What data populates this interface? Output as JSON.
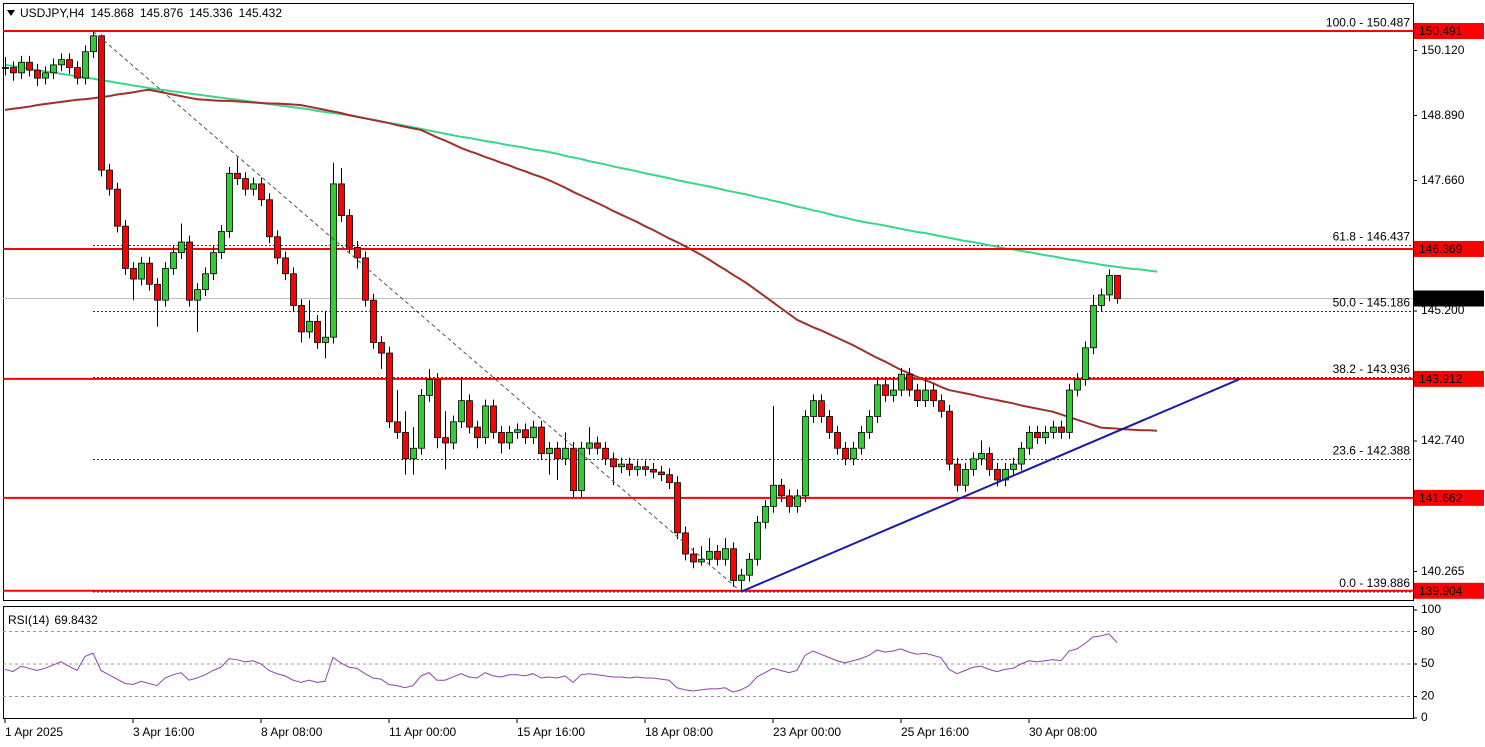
{
  "chart_data": {
    "type": "candlestick",
    "symbol": "USDJPY,H4",
    "categories": [
      "1 Apr 2025",
      null,
      null,
      null,
      null,
      null,
      null,
      null,
      null,
      null,
      null,
      null,
      null,
      null,
      null,
      null,
      "3 Apr 16:00",
      null,
      null,
      null,
      null,
      null,
      null,
      null,
      null,
      null,
      null,
      null,
      null,
      null,
      null,
      null,
      "8 Apr 08:00",
      null,
      null,
      null,
      null,
      null,
      null,
      null,
      null,
      null,
      null,
      null,
      null,
      null,
      null,
      null,
      "11 Apr 00:00",
      null,
      null,
      null,
      null,
      null,
      null,
      null,
      null,
      null,
      null,
      null,
      null,
      null,
      null,
      null,
      "15 Apr 16:00",
      null,
      null,
      null,
      null,
      null,
      null,
      null,
      null,
      null,
      null,
      null,
      null,
      null,
      null,
      null,
      "18 Apr 08:00",
      null,
      null,
      null,
      null,
      null,
      null,
      null,
      null,
      null,
      null,
      null,
      null,
      null,
      null,
      null,
      "23 Apr 00:00",
      null,
      null,
      null,
      null,
      null,
      null,
      null,
      null,
      null,
      null,
      null,
      null,
      null,
      null,
      null,
      "25 Apr 16:00",
      null,
      null,
      null,
      null,
      null,
      null,
      null,
      null,
      null,
      null,
      null,
      null,
      null,
      null,
      null,
      "30 Apr 08:00",
      null,
      null,
      null,
      null,
      null,
      null,
      null,
      null,
      null,
      null,
      null,
      null,
      null,
      null,
      null,
      null
    ],
    "open": [
      149.8,
      149.8,
      149.7,
      149.9,
      149.75,
      149.6,
      149.7,
      149.85,
      149.95,
      149.8,
      149.6,
      150.1,
      150.4,
      147.86,
      147.5,
      146.8,
      146.0,
      145.8,
      146.1,
      145.7,
      145.4,
      146.0,
      146.3,
      146.5,
      145.4,
      145.6,
      145.9,
      146.3,
      146.7,
      147.8,
      147.7,
      147.5,
      147.6,
      147.3,
      146.6,
      146.2,
      145.9,
      145.3,
      144.8,
      145.0,
      144.6,
      144.7,
      147.6,
      147.0,
      146.4,
      146.2,
      145.4,
      144.6,
      144.4,
      143.1,
      142.9,
      142.4,
      142.6,
      143.6,
      143.9,
      142.8,
      142.7,
      143.1,
      143.5,
      143.0,
      142.8,
      143.4,
      142.9,
      142.7,
      142.9,
      142.95,
      142.8,
      143.0,
      142.5,
      142.6,
      142.4,
      142.6,
      141.8,
      142.6,
      142.7,
      142.6,
      142.4,
      142.25,
      142.3,
      142.2,
      142.25,
      142.2,
      142.15,
      142.1,
      141.95,
      141.0,
      140.6,
      140.45,
      140.5,
      140.65,
      140.5,
      140.7,
      140.1,
      140.2,
      140.5,
      141.2,
      141.5,
      141.9,
      141.7,
      141.5,
      141.7,
      143.2,
      143.5,
      143.2,
      142.9,
      142.6,
      142.4,
      142.6,
      142.9,
      143.2,
      143.8,
      143.6,
      143.7,
      144.0,
      143.7,
      143.5,
      143.7,
      143.5,
      143.3,
      142.3,
      141.9,
      142.2,
      142.4,
      142.5,
      142.2,
      142.0,
      142.2,
      142.3,
      142.6,
      142.9,
      142.8,
      142.9,
      143.0,
      142.9,
      143.7,
      143.9,
      144.5,
      145.3,
      145.5,
      145.868,
      null,
      null,
      null,
      null,
      null
    ],
    "high": [
      150.0,
      149.92,
      150.02,
      150.02,
      149.87,
      149.82,
      149.97,
      150.07,
      150.07,
      149.92,
      150.22,
      150.487,
      150.42,
      147.98,
      147.62,
      146.92,
      146.12,
      146.22,
      146.22,
      145.82,
      146.12,
      146.42,
      146.85,
      146.62,
      145.72,
      146.02,
      146.42,
      146.82,
      147.92,
      148.1,
      147.82,
      147.72,
      147.72,
      147.42,
      146.72,
      146.32,
      146.02,
      145.42,
      145.4,
      145.12,
      145.2,
      148.0,
      147.9,
      147.12,
      146.52,
      146.32,
      145.52,
      144.72,
      144.52,
      143.7,
      143.3,
      143.0,
      143.72,
      144.1,
      144.02,
      143.3,
      143.22,
      143.95,
      143.62,
      143.12,
      143.52,
      143.52,
      143.02,
      143.02,
      143.07,
      143.07,
      143.12,
      143.12,
      142.72,
      142.72,
      142.9,
      142.72,
      142.72,
      143.0,
      142.82,
      142.72,
      142.52,
      142.42,
      142.42,
      142.37,
      142.37,
      142.32,
      142.27,
      142.22,
      142.07,
      141.12,
      140.72,
      140.75,
      140.9,
      140.77,
      140.9,
      140.82,
      140.32,
      140.62,
      141.32,
      141.62,
      143.4,
      142.02,
      141.82,
      141.82,
      143.32,
      143.62,
      143.62,
      143.32,
      143.02,
      142.72,
      142.72,
      143.02,
      143.32,
      143.92,
      143.92,
      143.95,
      144.12,
      144.12,
      143.82,
      143.9,
      143.82,
      143.62,
      143.42,
      142.42,
      142.32,
      142.52,
      142.75,
      142.62,
      142.32,
      142.32,
      142.42,
      142.72,
      143.02,
      143.02,
      143.02,
      143.12,
      143.12,
      143.82,
      144.02,
      144.62,
      145.5,
      145.62,
      145.98,
      145.876,
      null,
      null,
      null,
      null,
      null
    ],
    "low": [
      149.65,
      149.55,
      149.58,
      149.63,
      149.45,
      149.48,
      149.58,
      149.73,
      149.68,
      149.48,
      149.48,
      149.98,
      147.74,
      147.38,
      146.68,
      145.88,
      145.4,
      145.68,
      145.58,
      144.9,
      145.28,
      145.88,
      146.18,
      145.28,
      144.8,
      145.48,
      145.78,
      146.18,
      146.58,
      147.58,
      147.38,
      147.38,
      147.18,
      146.48,
      146.08,
      145.78,
      145.18,
      144.6,
      144.68,
      144.48,
      144.3,
      144.58,
      146.88,
      146.28,
      146.0,
      145.28,
      144.48,
      144.1,
      142.98,
      142.78,
      142.1,
      142.1,
      142.48,
      143.48,
      142.6,
      142.2,
      142.58,
      142.98,
      142.88,
      142.6,
      142.68,
      142.78,
      142.5,
      142.58,
      142.78,
      142.68,
      142.68,
      142.38,
      142.1,
      142.0,
      142.28,
      141.68,
      141.68,
      142.48,
      142.48,
      142.28,
      141.9,
      142.13,
      142.08,
      142.08,
      142.08,
      142.03,
      141.98,
      141.83,
      140.88,
      140.48,
      140.33,
      140.38,
      140.38,
      140.38,
      140.38,
      139.98,
      139.886,
      140.08,
      140.38,
      141.08,
      141.38,
      141.58,
      141.38,
      141.38,
      141.58,
      143.08,
      143.08,
      142.78,
      142.48,
      142.28,
      142.28,
      142.48,
      142.78,
      143.08,
      143.48,
      143.48,
      143.58,
      143.58,
      143.38,
      143.38,
      143.38,
      143.18,
      142.18,
      141.78,
      141.78,
      142.08,
      142.28,
      142.08,
      141.88,
      141.88,
      142.08,
      142.18,
      142.48,
      142.68,
      142.68,
      142.78,
      142.78,
      142.78,
      143.58,
      143.78,
      144.38,
      145.18,
      145.38,
      145.336,
      null,
      null,
      null,
      null,
      null
    ],
    "close": [
      149.8,
      149.7,
      149.9,
      149.75,
      149.6,
      149.7,
      149.85,
      149.95,
      149.8,
      149.6,
      150.1,
      150.4,
      147.86,
      147.5,
      146.8,
      146.0,
      145.8,
      146.1,
      145.7,
      145.4,
      146.0,
      146.3,
      146.5,
      145.4,
      145.6,
      145.9,
      146.3,
      146.7,
      147.8,
      147.7,
      147.5,
      147.6,
      147.3,
      146.6,
      146.2,
      145.9,
      145.3,
      144.8,
      145.0,
      144.6,
      144.7,
      147.6,
      147.0,
      146.4,
      146.2,
      145.4,
      144.6,
      144.4,
      143.1,
      142.9,
      142.4,
      142.6,
      143.6,
      143.9,
      142.8,
      142.7,
      143.1,
      143.5,
      143.0,
      142.8,
      143.4,
      142.9,
      142.7,
      142.9,
      142.95,
      142.8,
      143.0,
      142.5,
      142.6,
      142.4,
      142.6,
      141.8,
      142.6,
      142.7,
      142.6,
      142.4,
      142.25,
      142.3,
      142.2,
      142.25,
      142.2,
      142.15,
      142.1,
      141.95,
      141.0,
      140.6,
      140.45,
      140.5,
      140.65,
      140.5,
      140.7,
      140.1,
      140.2,
      140.5,
      141.2,
      141.5,
      141.9,
      141.7,
      141.5,
      141.7,
      143.2,
      143.5,
      143.2,
      142.9,
      142.6,
      142.4,
      142.6,
      142.9,
      143.2,
      143.8,
      143.6,
      143.7,
      144.0,
      143.7,
      143.5,
      143.7,
      143.5,
      143.3,
      142.3,
      141.9,
      142.2,
      142.4,
      142.5,
      142.2,
      142.0,
      142.2,
      142.3,
      142.6,
      142.9,
      142.8,
      142.9,
      143.0,
      142.9,
      143.7,
      143.9,
      144.5,
      145.3,
      145.5,
      145.868,
      145.432,
      null,
      null,
      null,
      null,
      null
    ],
    "up_color": "#32cd32",
    "down_color": "#ff0000",
    "series": [
      {
        "color": "#3ad68a",
        "values": [
          149.85,
          149.83,
          149.8,
          149.78,
          149.75,
          149.73,
          149.71,
          149.68,
          149.66,
          149.63,
          149.61,
          149.59,
          149.56,
          149.54,
          149.51,
          149.49,
          149.46,
          149.44,
          149.41,
          149.39,
          149.37,
          149.35,
          149.33,
          149.31,
          149.29,
          149.27,
          149.25,
          149.23,
          149.21,
          149.19,
          149.17,
          149.15,
          149.13,
          149.11,
          149.09,
          149.07,
          149.05,
          149.03,
          149.01,
          148.98,
          148.96,
          148.94,
          148.92,
          148.9,
          148.87,
          148.84,
          148.81,
          148.78,
          148.75,
          148.73,
          148.7,
          148.67,
          148.64,
          148.61,
          148.58,
          148.55,
          148.52,
          148.49,
          148.47,
          148.44,
          148.41,
          148.39,
          148.36,
          148.33,
          148.31,
          148.28,
          148.25,
          148.23,
          148.2,
          148.17,
          148.13,
          148.1,
          148.07,
          148.03,
          148.0,
          147.97,
          147.93,
          147.9,
          147.87,
          147.84,
          147.8,
          147.77,
          147.74,
          147.71,
          147.67,
          147.64,
          147.61,
          147.58,
          147.55,
          147.52,
          147.48,
          147.45,
          147.42,
          147.39,
          147.35,
          147.32,
          147.28,
          147.25,
          147.21,
          147.17,
          147.14,
          147.1,
          147.07,
          147.03,
          146.99,
          146.96,
          146.92,
          146.89,
          146.86,
          146.84,
          146.81,
          146.78,
          146.75,
          146.72,
          146.69,
          146.67,
          146.64,
          146.61,
          146.58,
          146.55,
          146.52,
          146.5,
          146.47,
          146.44,
          146.41,
          146.38,
          146.36,
          146.33,
          146.31,
          146.28,
          146.25,
          146.23,
          146.2,
          146.17,
          146.15,
          146.12,
          146.1,
          146.07,
          146.05,
          146.03,
          146.01,
          145.99,
          145.98,
          145.96,
          145.94
        ]
      },
      {
        "color": "#a0302a",
        "values": [
          149.0,
          149.02,
          149.04,
          149.06,
          149.09,
          149.11,
          149.13,
          149.15,
          149.17,
          149.19,
          149.2,
          149.22,
          149.24,
          149.26,
          149.29,
          149.31,
          149.33,
          149.36,
          149.38,
          149.35,
          149.32,
          149.29,
          149.26,
          149.23,
          149.2,
          149.19,
          149.18,
          149.17,
          149.17,
          149.16,
          149.15,
          149.14,
          149.13,
          149.12,
          149.12,
          149.11,
          149.1,
          149.09,
          149.06,
          149.03,
          149.0,
          148.97,
          148.94,
          148.9,
          148.87,
          148.84,
          148.81,
          148.78,
          148.75,
          148.71,
          148.68,
          148.65,
          148.62,
          148.55,
          148.48,
          148.42,
          148.35,
          148.28,
          148.22,
          148.17,
          148.11,
          148.06,
          148.0,
          147.95,
          147.89,
          147.84,
          147.78,
          147.73,
          147.67,
          147.6,
          147.53,
          147.45,
          147.38,
          147.31,
          147.24,
          147.17,
          147.09,
          147.02,
          146.95,
          146.88,
          146.8,
          146.73,
          146.65,
          146.57,
          146.5,
          146.42,
          146.34,
          146.26,
          146.17,
          146.07,
          145.98,
          145.88,
          145.79,
          145.69,
          145.58,
          145.47,
          145.36,
          145.25,
          145.14,
          145.03,
          144.96,
          144.89,
          144.83,
          144.76,
          144.69,
          144.62,
          144.55,
          144.47,
          144.39,
          144.31,
          144.24,
          144.16,
          144.08,
          144.02,
          143.95,
          143.89,
          143.83,
          143.76,
          143.7,
          143.67,
          143.64,
          143.61,
          143.57,
          143.54,
          143.51,
          143.48,
          143.45,
          143.41,
          143.38,
          143.35,
          143.32,
          143.29,
          143.24,
          143.19,
          143.14,
          143.09,
          143.04,
          142.99,
          142.98,
          142.97,
          142.96,
          142.95,
          142.94,
          142.94,
          142.93
        ]
      }
    ],
    "trendlines": [
      {
        "color": "#555555",
        "style": "dashed",
        "x": [
          11,
          92
        ],
        "values": [
          150.487,
          139.886
        ]
      },
      {
        "color": "#1a1aa6",
        "style": "solid",
        "x": [
          92,
          154.4
        ],
        "values": [
          139.886,
          143.912
        ]
      }
    ],
    "levels": [
      150.491,
      146.369,
      143.912,
      141.662,
      139.904
    ],
    "level_color": "#ff0000",
    "fib_levels": [
      {
        "label": "100.0 - 150.487",
        "value": 150.487
      },
      {
        "label": "61.8 - 146.437",
        "value": 146.437
      },
      {
        "label": "50.0 - 145.186",
        "value": 145.186
      },
      {
        "label": "38.2 - 143.936",
        "value": 143.936
      },
      {
        "label": "23.6 - 142.388",
        "value": 142.388
      },
      {
        "label": "0.0 - 139.886",
        "value": 139.886
      }
    ],
    "fib_color": "#1a237e",
    "ylim": [
      139.73,
      150.51
    ],
    "yticks": [
      {
        "value": 150.12,
        "label": "150.120"
      },
      {
        "value": 148.89,
        "label": "148.890"
      },
      {
        "value": 147.66,
        "label": "147.660"
      },
      {
        "value": 145.2,
        "label": "145.200"
      },
      {
        "value": 142.74,
        "label": "142.740"
      },
      140.265
    ],
    "indicator": {
      "title": "RSI(14)",
      "color": "#8e44ad",
      "values": [
        45,
        43,
        48,
        46,
        44,
        46,
        49,
        52,
        48,
        44,
        57,
        60,
        44,
        40,
        36,
        32,
        31,
        34,
        32,
        30,
        37,
        40,
        42,
        35,
        37,
        40,
        44,
        47,
        55,
        54,
        52,
        53,
        50,
        44,
        41,
        39,
        35,
        33,
        35,
        33,
        34,
        56,
        51,
        47,
        46,
        41,
        37,
        36,
        31,
        30,
        28,
        30,
        39,
        42,
        35,
        35,
        38,
        41,
        38,
        37,
        42,
        39,
        38,
        40,
        40,
        39,
        41,
        37,
        38,
        37,
        39,
        33,
        40,
        41,
        40,
        39,
        38,
        38,
        37,
        38,
        37,
        37,
        36,
        35,
        28,
        26,
        25,
        26,
        27,
        27,
        28,
        24,
        26,
        30,
        38,
        42,
        46,
        44,
        42,
        44,
        58,
        62,
        59,
        56,
        53,
        51,
        53,
        55,
        58,
        63,
        61,
        62,
        64,
        61,
        59,
        60,
        58,
        56,
        45,
        41,
        44,
        47,
        48,
        45,
        43,
        45,
        46,
        50,
        53,
        52,
        53,
        54,
        53,
        62,
        64,
        69,
        75,
        76,
        78,
        69.8432,
        null,
        null,
        null,
        null,
        null
      ],
      "ylim": [
        0,
        100
      ],
      "yticks": [
        0,
        20,
        50,
        80,
        100
      ],
      "levels": [
        20,
        50,
        80
      ]
    }
  }
}
